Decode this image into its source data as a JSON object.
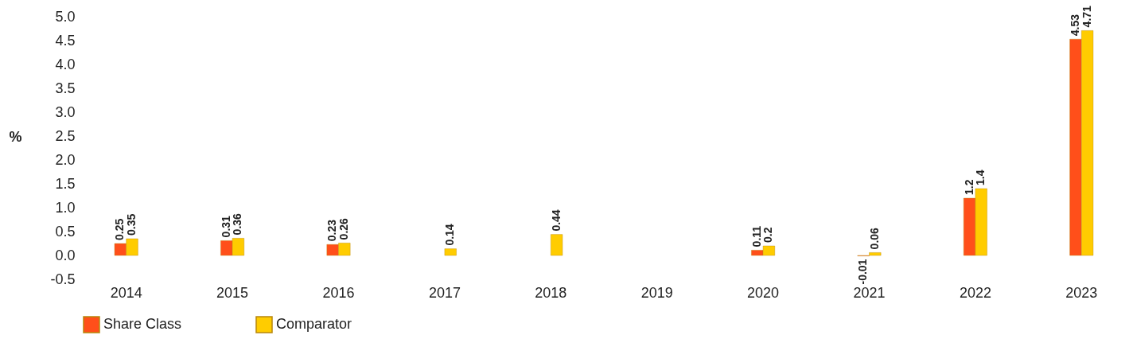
{
  "chart_data": {
    "type": "bar",
    "ylabel": "%",
    "categories": [
      "2014",
      "2015",
      "2016",
      "2017",
      "2018",
      "2019",
      "2020",
      "2021",
      "2022",
      "2023"
    ],
    "series": [
      {
        "name": "Share Class",
        "color": "#ff4f1a",
        "values": [
          0.25,
          0.31,
          0.23,
          null,
          null,
          null,
          0.11,
          -0.01,
          1.2,
          4.53
        ]
      },
      {
        "name": "Comparator",
        "color": "#ffcc00",
        "values": [
          0.35,
          0.36,
          0.26,
          0.14,
          0.44,
          null,
          0.2,
          0.06,
          1.4,
          4.71
        ]
      }
    ],
    "ylim": [
      -0.5,
      5.0
    ],
    "yticks": [
      {
        "value": -0.5,
        "label": "-0.5"
      },
      {
        "value": 0,
        "label": "0.0"
      },
      {
        "value": 0.5,
        "label": "0.5"
      },
      {
        "value": 1,
        "label": "1.0"
      },
      {
        "value": 1.5,
        "label": "1.5"
      },
      {
        "value": 2,
        "label": "2.0"
      },
      {
        "value": 2.5,
        "label": "2.5"
      },
      {
        "value": 3,
        "label": "3.0"
      },
      {
        "value": 3.5,
        "label": "3.5"
      },
      {
        "value": 4,
        "label": "4.0"
      },
      {
        "value": 4.5,
        "label": "4.5"
      },
      {
        "value": 5,
        "label": "5.0"
      }
    ],
    "data_labels": true,
    "grid": false,
    "legend": "bottom left"
  }
}
